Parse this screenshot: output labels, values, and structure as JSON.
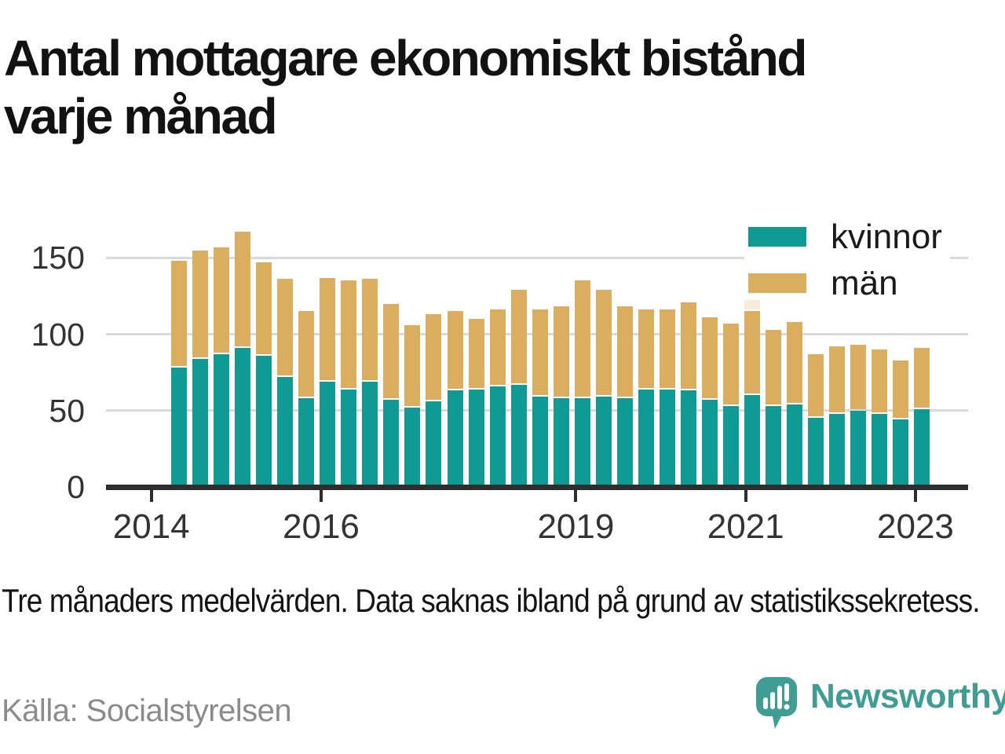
{
  "title": {
    "line1": "Antal mottagare ekonomiskt bistånd",
    "line2": "varje månad"
  },
  "footnote": "Tre månaders medelvärden. Data saknas ibland på grund av statistikssekretess.",
  "source": "Källa: Socialstyrelsen",
  "branding": {
    "name": "Newsworthy",
    "icon": "newsworthy-speech-bubble-chart-icon",
    "color": "#3f9d94"
  },
  "legend": [
    {
      "label": "kvinnor",
      "color": "#0f9b94"
    },
    {
      "label": "män",
      "color": "#daae5e"
    }
  ],
  "colors": {
    "kvinnor": "#0f9b94",
    "man": "#daae5e",
    "uncertain": "#f6ecd9",
    "grid": "#d9d9d9",
    "axis": "#2e2e2e",
    "tick_text": "#333333",
    "title_text": "#121212",
    "source_text": "#8b8b8b"
  },
  "chart_data": {
    "type": "bar",
    "stacked": true,
    "title": "Antal mottagare ekonomiskt bistånd varje månad",
    "xlabel": "",
    "ylabel": "",
    "grid": "horizontal",
    "legend_position": "top-right",
    "ylim": [
      0,
      175
    ],
    "yticks": [
      0,
      50,
      100,
      150
    ],
    "xticks": [
      2014,
      2016,
      2019,
      2021,
      2023
    ],
    "categories": [
      "2014 Q2",
      "2014 Q3",
      "2014 Q4",
      "2015 Q1",
      "2015 Q2",
      "2015 Q3",
      "2015 Q4",
      "2016 Q1",
      "2016 Q2",
      "2016 Q3",
      "2016 Q4",
      "2017 Q1",
      "2017 Q2",
      "2017 Q3",
      "2017 Q4",
      "2018 Q1",
      "2018 Q2",
      "2018 Q3",
      "2018 Q4",
      "2019 Q1",
      "2019 Q2",
      "2019 Q3",
      "2019 Q4",
      "2020 Q1",
      "2020 Q2",
      "2020 Q3",
      "2020 Q4",
      "2021 Q1",
      "2021 Q2",
      "2021 Q3",
      "2021 Q4",
      "2022 Q1",
      "2022 Q2",
      "2022 Q3",
      "2022 Q4",
      "2023 Q1"
    ],
    "series": [
      {
        "name": "kvinnor",
        "color": "#0f9b94",
        "values": [
          78,
          84,
          87,
          91,
          86,
          72,
          58,
          69,
          64,
          69,
          57,
          52,
          56,
          63,
          64,
          66,
          67,
          59,
          58,
          58,
          59,
          58,
          64,
          64,
          63,
          57,
          53,
          60,
          53,
          54,
          45,
          48,
          50,
          48,
          44,
          51
        ]
      },
      {
        "name": "män",
        "color": "#daae5e",
        "values": [
          70,
          71,
          70,
          76,
          61,
          64,
          57,
          68,
          71,
          67,
          63,
          54,
          57,
          52,
          46,
          50,
          62,
          57,
          60,
          77,
          70,
          60,
          52,
          52,
          58,
          54,
          54,
          55,
          50,
          54,
          42,
          44,
          43,
          42,
          39,
          40
        ]
      }
    ],
    "uncertain_segment": {
      "category_index": 27,
      "value": 7.5,
      "color": "#f6ecd9"
    }
  }
}
